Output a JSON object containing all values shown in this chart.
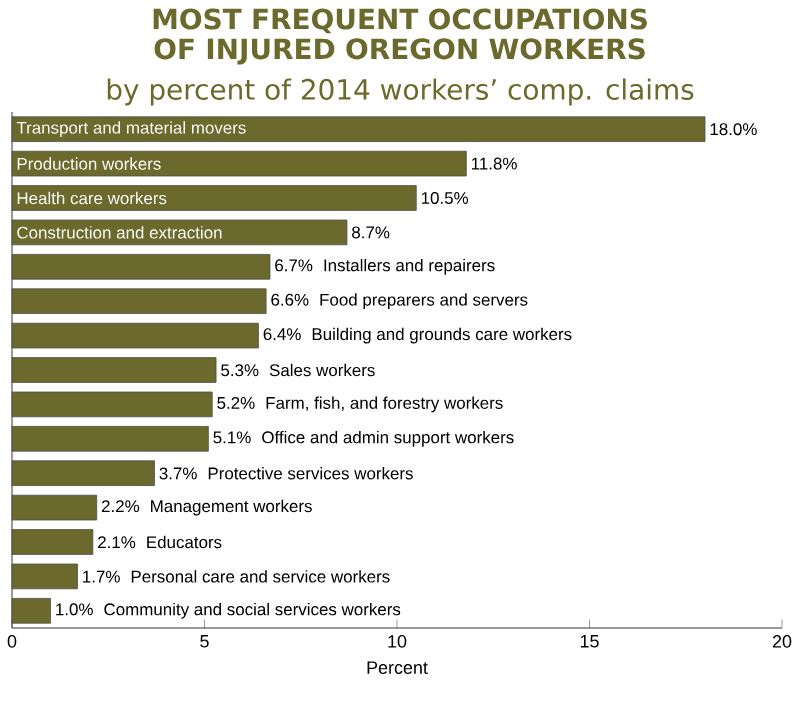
{
  "chart_data": {
    "type": "bar",
    "orientation": "horizontal",
    "title": "MOST FREQUENT OCCUPATIONS OF INJURED OREGON WORKERS",
    "subtitle": "by percent of 2014 workers’ comp. claims",
    "xlabel": "Percent",
    "categories": [
      "Transport and material movers",
      "Production workers",
      "Health care workers",
      "Construction and extraction",
      "Installers and repairers",
      "Food preparers and servers",
      "Building and grounds care workers",
      "Sales workers",
      "Farm, fish, and forestry workers",
      "Office and admin support workers",
      "Protective services workers",
      "Management workers",
      "Educators",
      "Personal care and service workers",
      "Community and social services workers"
    ],
    "values": [
      18.0,
      11.8,
      10.5,
      8.7,
      6.7,
      6.6,
      6.4,
      5.3,
      5.2,
      5.1,
      3.7,
      2.2,
      2.1,
      1.7,
      1.0
    ],
    "value_labels": [
      "18.0%",
      "11.8%",
      "10.5%",
      "8.7%",
      "6.7%",
      "6.6%",
      "6.4%",
      "5.3%",
      "5.2%",
      "5.1%",
      "3.7%",
      "2.2%",
      "2.1%",
      "1.7%",
      "1.0%"
    ],
    "color": "#6b6a2c",
    "xlim": [
      0,
      20
    ],
    "xticks": [
      0,
      5,
      10,
      15,
      20
    ],
    "grid": false
  }
}
